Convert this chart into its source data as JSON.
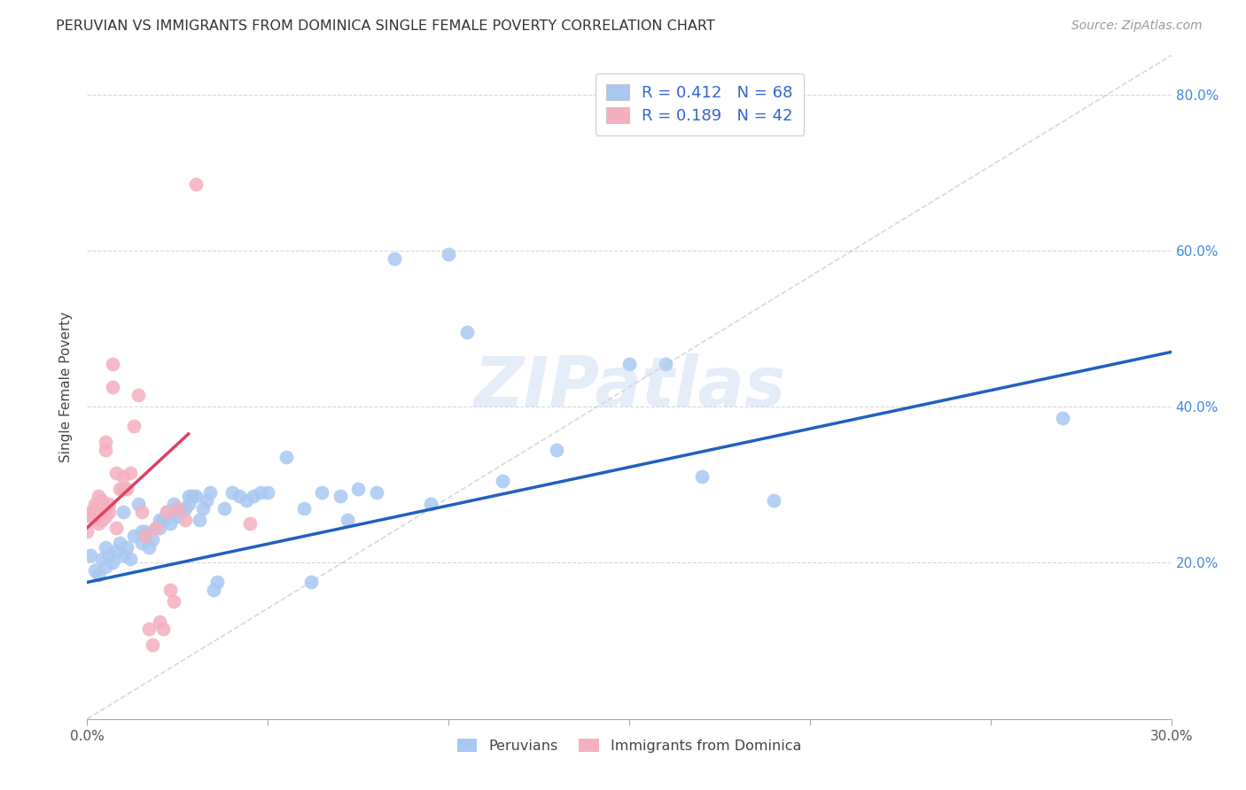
{
  "title": "PERUVIAN VS IMMIGRANTS FROM DOMINICA SINGLE FEMALE POVERTY CORRELATION CHART",
  "source": "Source: ZipAtlas.com",
  "ylabel": "Single Female Poverty",
  "x_min": 0.0,
  "x_max": 0.3,
  "y_min": 0.0,
  "y_max": 0.85,
  "x_ticks": [
    0.0,
    0.05,
    0.1,
    0.15,
    0.2,
    0.25,
    0.3
  ],
  "y_ticks": [
    0.0,
    0.2,
    0.4,
    0.6,
    0.8
  ],
  "color_blue": "#a8c8f0",
  "color_pink": "#f5b0c0",
  "line_blue": "#2060c0",
  "line_pink": "#e04060",
  "line_dashed_color": "#c8c8c8",
  "R_blue": 0.412,
  "N_blue": 68,
  "R_pink": 0.189,
  "N_pink": 42,
  "legend_label_blue": "Peruvians",
  "legend_label_pink": "Immigrants from Dominica",
  "watermark": "ZIPatlas",
  "blue_line_x": [
    0.0,
    0.3
  ],
  "blue_line_y": [
    0.175,
    0.47
  ],
  "pink_line_x": [
    0.0,
    0.028
  ],
  "pink_line_y": [
    0.245,
    0.365
  ],
  "dash_line_x": [
    0.0,
    0.3
  ],
  "dash_line_y": [
    0.0,
    0.85
  ],
  "blue_points": [
    [
      0.001,
      0.21
    ],
    [
      0.002,
      0.19
    ],
    [
      0.003,
      0.185
    ],
    [
      0.004,
      0.205
    ],
    [
      0.005,
      0.195
    ],
    [
      0.005,
      0.22
    ],
    [
      0.006,
      0.21
    ],
    [
      0.007,
      0.2
    ],
    [
      0.008,
      0.215
    ],
    [
      0.009,
      0.225
    ],
    [
      0.01,
      0.21
    ],
    [
      0.01,
      0.265
    ],
    [
      0.011,
      0.22
    ],
    [
      0.012,
      0.205
    ],
    [
      0.013,
      0.235
    ],
    [
      0.014,
      0.275
    ],
    [
      0.015,
      0.225
    ],
    [
      0.015,
      0.24
    ],
    [
      0.016,
      0.24
    ],
    [
      0.017,
      0.22
    ],
    [
      0.018,
      0.23
    ],
    [
      0.019,
      0.245
    ],
    [
      0.02,
      0.245
    ],
    [
      0.02,
      0.255
    ],
    [
      0.021,
      0.255
    ],
    [
      0.022,
      0.265
    ],
    [
      0.023,
      0.25
    ],
    [
      0.024,
      0.275
    ],
    [
      0.025,
      0.26
    ],
    [
      0.025,
      0.27
    ],
    [
      0.026,
      0.265
    ],
    [
      0.027,
      0.27
    ],
    [
      0.028,
      0.275
    ],
    [
      0.028,
      0.285
    ],
    [
      0.029,
      0.285
    ],
    [
      0.03,
      0.285
    ],
    [
      0.031,
      0.255
    ],
    [
      0.032,
      0.27
    ],
    [
      0.033,
      0.28
    ],
    [
      0.034,
      0.29
    ],
    [
      0.035,
      0.165
    ],
    [
      0.036,
      0.175
    ],
    [
      0.038,
      0.27
    ],
    [
      0.04,
      0.29
    ],
    [
      0.042,
      0.285
    ],
    [
      0.044,
      0.28
    ],
    [
      0.046,
      0.285
    ],
    [
      0.048,
      0.29
    ],
    [
      0.05,
      0.29
    ],
    [
      0.055,
      0.335
    ],
    [
      0.06,
      0.27
    ],
    [
      0.062,
      0.175
    ],
    [
      0.065,
      0.29
    ],
    [
      0.07,
      0.285
    ],
    [
      0.072,
      0.255
    ],
    [
      0.075,
      0.295
    ],
    [
      0.08,
      0.29
    ],
    [
      0.085,
      0.59
    ],
    [
      0.095,
      0.275
    ],
    [
      0.1,
      0.595
    ],
    [
      0.105,
      0.495
    ],
    [
      0.115,
      0.305
    ],
    [
      0.13,
      0.345
    ],
    [
      0.15,
      0.455
    ],
    [
      0.16,
      0.455
    ],
    [
      0.17,
      0.31
    ],
    [
      0.19,
      0.28
    ],
    [
      0.27,
      0.385
    ]
  ],
  "pink_points": [
    [
      0.0,
      0.24
    ],
    [
      0.001,
      0.265
    ],
    [
      0.001,
      0.26
    ],
    [
      0.002,
      0.255
    ],
    [
      0.002,
      0.27
    ],
    [
      0.002,
      0.275
    ],
    [
      0.003,
      0.25
    ],
    [
      0.003,
      0.265
    ],
    [
      0.003,
      0.285
    ],
    [
      0.004,
      0.255
    ],
    [
      0.004,
      0.27
    ],
    [
      0.004,
      0.28
    ],
    [
      0.005,
      0.26
    ],
    [
      0.005,
      0.345
    ],
    [
      0.005,
      0.355
    ],
    [
      0.006,
      0.265
    ],
    [
      0.006,
      0.275
    ],
    [
      0.007,
      0.425
    ],
    [
      0.007,
      0.455
    ],
    [
      0.008,
      0.245
    ],
    [
      0.008,
      0.315
    ],
    [
      0.009,
      0.295
    ],
    [
      0.01,
      0.295
    ],
    [
      0.01,
      0.31
    ],
    [
      0.011,
      0.295
    ],
    [
      0.012,
      0.315
    ],
    [
      0.013,
      0.375
    ],
    [
      0.014,
      0.415
    ],
    [
      0.015,
      0.265
    ],
    [
      0.016,
      0.235
    ],
    [
      0.017,
      0.115
    ],
    [
      0.018,
      0.095
    ],
    [
      0.019,
      0.245
    ],
    [
      0.02,
      0.125
    ],
    [
      0.021,
      0.115
    ],
    [
      0.022,
      0.265
    ],
    [
      0.023,
      0.165
    ],
    [
      0.024,
      0.15
    ],
    [
      0.025,
      0.27
    ],
    [
      0.027,
      0.255
    ],
    [
      0.03,
      0.685
    ],
    [
      0.045,
      0.25
    ]
  ]
}
